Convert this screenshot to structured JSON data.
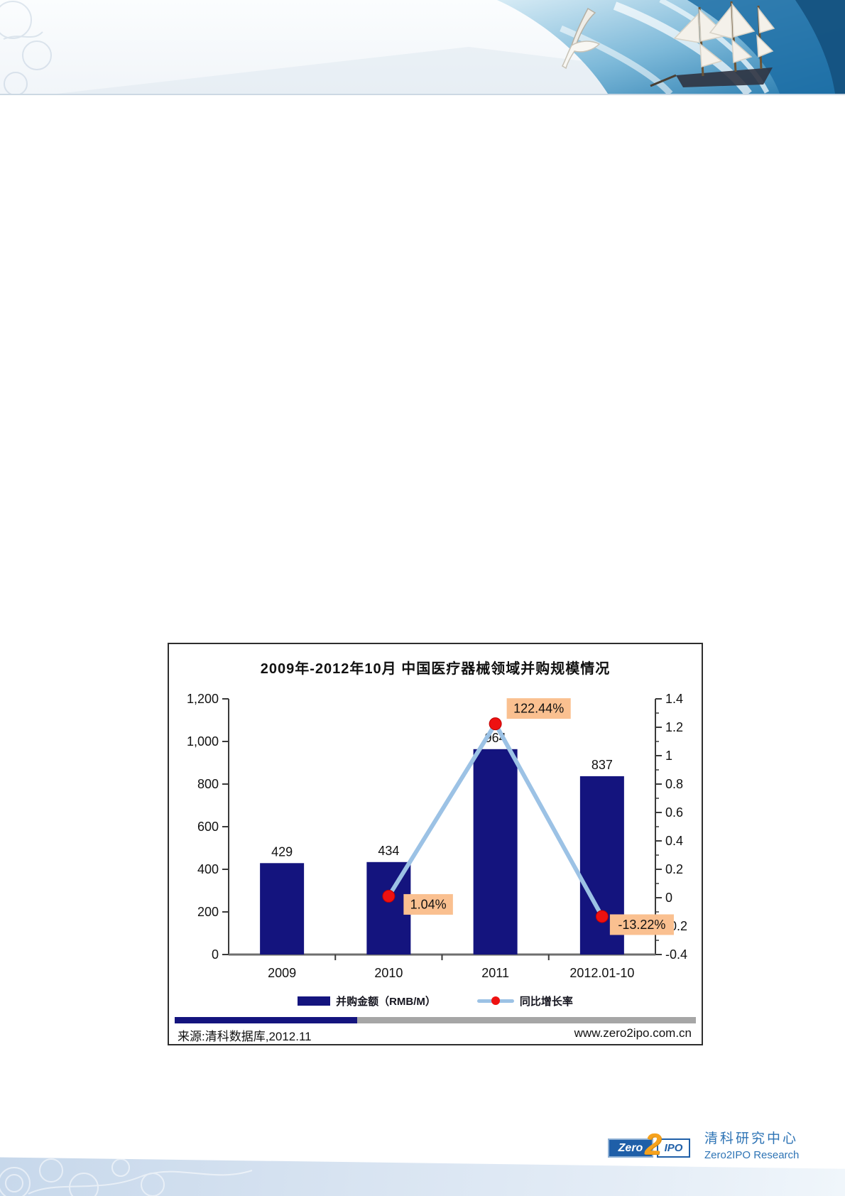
{
  "chart": {
    "source_label": "来源:清科数据库,2012.11",
    "website": "www.zero2ipo.com.cn"
  },
  "chart_data": {
    "type": "bar+line",
    "title": "2009年-2012年10月 中国医疗器械领域并购规模情况",
    "categories": [
      "2009",
      "2010",
      "2011",
      "2012.01-10"
    ],
    "series": [
      {
        "name": "并购金额（RMB/M）",
        "type": "bar",
        "axis": "left",
        "values": [
          429,
          434,
          964,
          837
        ],
        "labels": [
          "429",
          "434",
          "964",
          "837"
        ],
        "color": "#14147E"
      },
      {
        "name": "同比增长率",
        "type": "line",
        "axis": "right",
        "values": [
          null,
          0.0104,
          1.2244,
          -0.1322
        ],
        "labels": [
          null,
          "1.04%",
          "122.44%",
          "-13.22%"
        ],
        "color": "#9CC2E5",
        "point_color": "#EE1111"
      }
    ],
    "left_axis": {
      "min": 0,
      "max": 1200,
      "step": 200,
      "ticks": [
        "1,200",
        "1,000",
        "800",
        "600",
        "400",
        "200",
        "0"
      ]
    },
    "right_axis": {
      "min": -0.4,
      "max": 1.4,
      "step": 0.2,
      "ticks": [
        "1.4",
        "1.2",
        "1",
        "0.8",
        "0.6",
        "0.4",
        "0.2",
        "0",
        "-0.2",
        "-0.4"
      ]
    },
    "xlabel": "",
    "ylabel": "",
    "grid": false,
    "legend_position": "bottom",
    "callout_bg": "#FAC090",
    "label_color": "#111111"
  },
  "footer": {
    "logo": {
      "zero": "Zero",
      "two": "2",
      "ipo": "IPO"
    },
    "org_cn": "清科研究中心",
    "org_en": "Zero2IPO Research"
  },
  "colors": {
    "bar_navy": "#14147E",
    "line_blue": "#9CC2E5",
    "point_red": "#EE1111",
    "callout_tan": "#FAC090",
    "divider_gray": "#A6A6A6",
    "brand_blue": "#2E74B5",
    "logo_orange": "#F6A21D"
  }
}
